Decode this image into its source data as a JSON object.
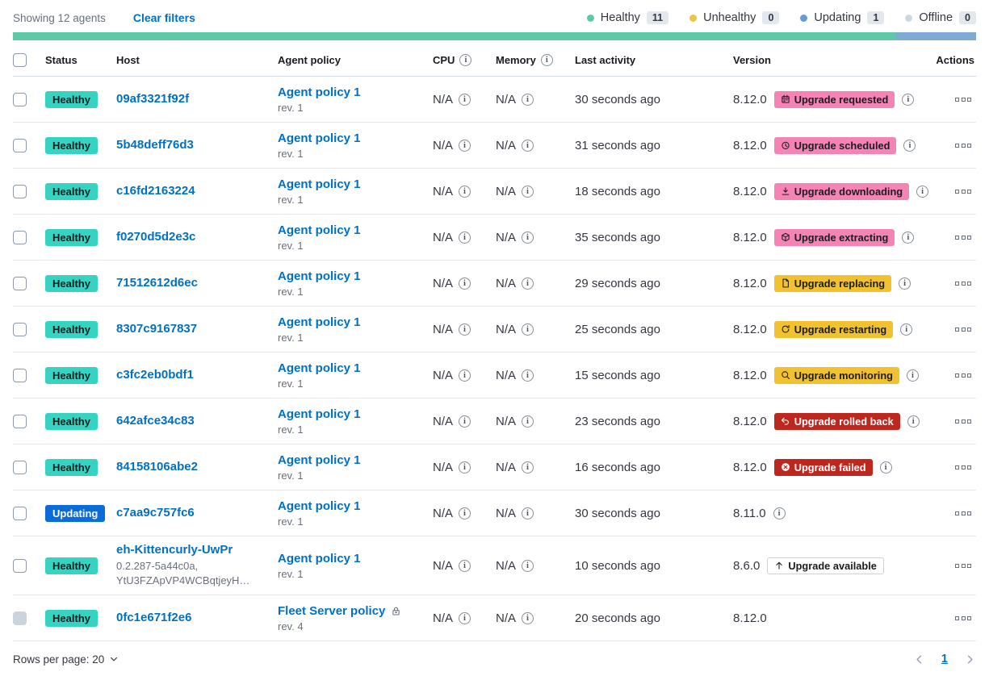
{
  "header_bar": {
    "showing_text": "Showing 12 agents",
    "clear_filters_label": "Clear filters",
    "legend": [
      {
        "label": "Healthy",
        "count": "11",
        "color": "#5ec9a6"
      },
      {
        "label": "Unhealthy",
        "count": "0",
        "color": "#e9c648"
      },
      {
        "label": "Updating",
        "count": "1",
        "color": "#639dd6"
      },
      {
        "label": "Offline",
        "count": "0",
        "color": "#cfd7e2"
      }
    ],
    "progress_segments": [
      {
        "status": "healthy",
        "value": 11,
        "color": "#5fc9a7"
      },
      {
        "status": "updating",
        "value": 1,
        "color": "#80aad6"
      }
    ]
  },
  "table": {
    "columns": {
      "status": "Status",
      "host": "Host",
      "policy": "Agent policy",
      "cpu": "CPU",
      "memory": "Memory",
      "last_activity": "Last activity",
      "version": "Version",
      "actions": "Actions"
    }
  },
  "rows": [
    {
      "status": "Healthy",
      "status_style": "healthy",
      "host": "09af3321f92f",
      "host_sub": "",
      "policy": "Agent policy 1",
      "policy_rev": "rev. 1",
      "policy_locked": false,
      "cpu": "N/A",
      "memory": "N/A",
      "last_activity": "30 seconds ago",
      "version": "8.12.0",
      "upgrade": {
        "label": "Upgrade requested",
        "icon": "calendar",
        "style": "pink"
      },
      "version_info": true,
      "checkbox_disabled": false
    },
    {
      "status": "Healthy",
      "status_style": "healthy",
      "host": "5b48deff76d3",
      "host_sub": "",
      "policy": "Agent policy 1",
      "policy_rev": "rev. 1",
      "policy_locked": false,
      "cpu": "N/A",
      "memory": "N/A",
      "last_activity": "31 seconds ago",
      "version": "8.12.0",
      "upgrade": {
        "label": "Upgrade scheduled",
        "icon": "clock",
        "style": "pink"
      },
      "version_info": true,
      "checkbox_disabled": false
    },
    {
      "status": "Healthy",
      "status_style": "healthy",
      "host": "c16fd2163224",
      "host_sub": "",
      "policy": "Agent policy 1",
      "policy_rev": "rev. 1",
      "policy_locked": false,
      "cpu": "N/A",
      "memory": "N/A",
      "last_activity": "18 seconds ago",
      "version": "8.12.0",
      "upgrade": {
        "label": "Upgrade downloading",
        "icon": "download",
        "style": "pink"
      },
      "version_info": true,
      "checkbox_disabled": false
    },
    {
      "status": "Healthy",
      "status_style": "healthy",
      "host": "f0270d5d2e3c",
      "host_sub": "",
      "policy": "Agent policy 1",
      "policy_rev": "rev. 1",
      "policy_locked": false,
      "cpu": "N/A",
      "memory": "N/A",
      "last_activity": "35 seconds ago",
      "version": "8.12.0",
      "upgrade": {
        "label": "Upgrade extracting",
        "icon": "package",
        "style": "pink"
      },
      "version_info": true,
      "checkbox_disabled": false
    },
    {
      "status": "Healthy",
      "status_style": "healthy",
      "host": "71512612d6ec",
      "host_sub": "",
      "policy": "Agent policy 1",
      "policy_rev": "rev. 1",
      "policy_locked": false,
      "cpu": "N/A",
      "memory": "N/A",
      "last_activity": "29 seconds ago",
      "version": "8.12.0",
      "upgrade": {
        "label": "Upgrade replacing",
        "icon": "document",
        "style": "yellow"
      },
      "version_info": true,
      "checkbox_disabled": false
    },
    {
      "status": "Healthy",
      "status_style": "healthy",
      "host": "8307c9167837",
      "host_sub": "",
      "policy": "Agent policy 1",
      "policy_rev": "rev. 1",
      "policy_locked": false,
      "cpu": "N/A",
      "memory": "N/A",
      "last_activity": "25 seconds ago",
      "version": "8.12.0",
      "upgrade": {
        "label": "Upgrade restarting",
        "icon": "refresh",
        "style": "yellow"
      },
      "version_info": true,
      "checkbox_disabled": false
    },
    {
      "status": "Healthy",
      "status_style": "healthy",
      "host": "c3fc2eb0bdf1",
      "host_sub": "",
      "policy": "Agent policy 1",
      "policy_rev": "rev. 1",
      "policy_locked": false,
      "cpu": "N/A",
      "memory": "N/A",
      "last_activity": "15 seconds ago",
      "version": "8.12.0",
      "upgrade": {
        "label": "Upgrade monitoring",
        "icon": "inspect",
        "style": "yellow"
      },
      "version_info": true,
      "checkbox_disabled": false
    },
    {
      "status": "Healthy",
      "status_style": "healthy",
      "host": "642afce34c83",
      "host_sub": "",
      "policy": "Agent policy 1",
      "policy_rev": "rev. 1",
      "policy_locked": false,
      "cpu": "N/A",
      "memory": "N/A",
      "last_activity": "23 seconds ago",
      "version": "8.12.0",
      "upgrade": {
        "label": "Upgrade rolled back",
        "icon": "return",
        "style": "red"
      },
      "version_info": true,
      "checkbox_disabled": false
    },
    {
      "status": "Healthy",
      "status_style": "healthy",
      "host": "84158106abe2",
      "host_sub": "",
      "policy": "Agent policy 1",
      "policy_rev": "rev. 1",
      "policy_locked": false,
      "cpu": "N/A",
      "memory": "N/A",
      "last_activity": "16 seconds ago",
      "version": "8.12.0",
      "upgrade": {
        "label": "Upgrade failed",
        "icon": "cross",
        "style": "red"
      },
      "version_info": true,
      "checkbox_disabled": false
    },
    {
      "status": "Updating",
      "status_style": "updating",
      "host": "c7aa9c757fc6",
      "host_sub": "",
      "policy": "Agent policy 1",
      "policy_rev": "rev. 1",
      "policy_locked": false,
      "cpu": "N/A",
      "memory": "N/A",
      "last_activity": "30 seconds ago",
      "version": "8.11.0",
      "upgrade": null,
      "version_info": true,
      "checkbox_disabled": false
    },
    {
      "status": "Healthy",
      "status_style": "healthy",
      "host": "eh-Kittencurly-UwPr",
      "host_sub": "0.2.287-5a44c0a, YtU3FZApVP4WCBqtjeyH…",
      "policy": "Agent policy 1",
      "policy_rev": "rev. 1",
      "policy_locked": false,
      "cpu": "N/A",
      "memory": "N/A",
      "last_activity": "10 seconds ago",
      "version": "8.6.0",
      "upgrade": {
        "label": "Upgrade available",
        "icon": "arrowUp",
        "style": "hollow"
      },
      "version_info": false,
      "checkbox_disabled": false
    },
    {
      "status": "Healthy",
      "status_style": "healthy",
      "host": "0fc1e671f2e6",
      "host_sub": "",
      "policy": "Fleet Server policy",
      "policy_rev": "rev. 4",
      "policy_locked": true,
      "cpu": "N/A",
      "memory": "N/A",
      "last_activity": "20 seconds ago",
      "version": "8.12.0",
      "upgrade": null,
      "version_info": false,
      "checkbox_disabled": true
    }
  ],
  "footer": {
    "rows_per_page_label": "Rows per page: 20",
    "current_page": "1"
  }
}
